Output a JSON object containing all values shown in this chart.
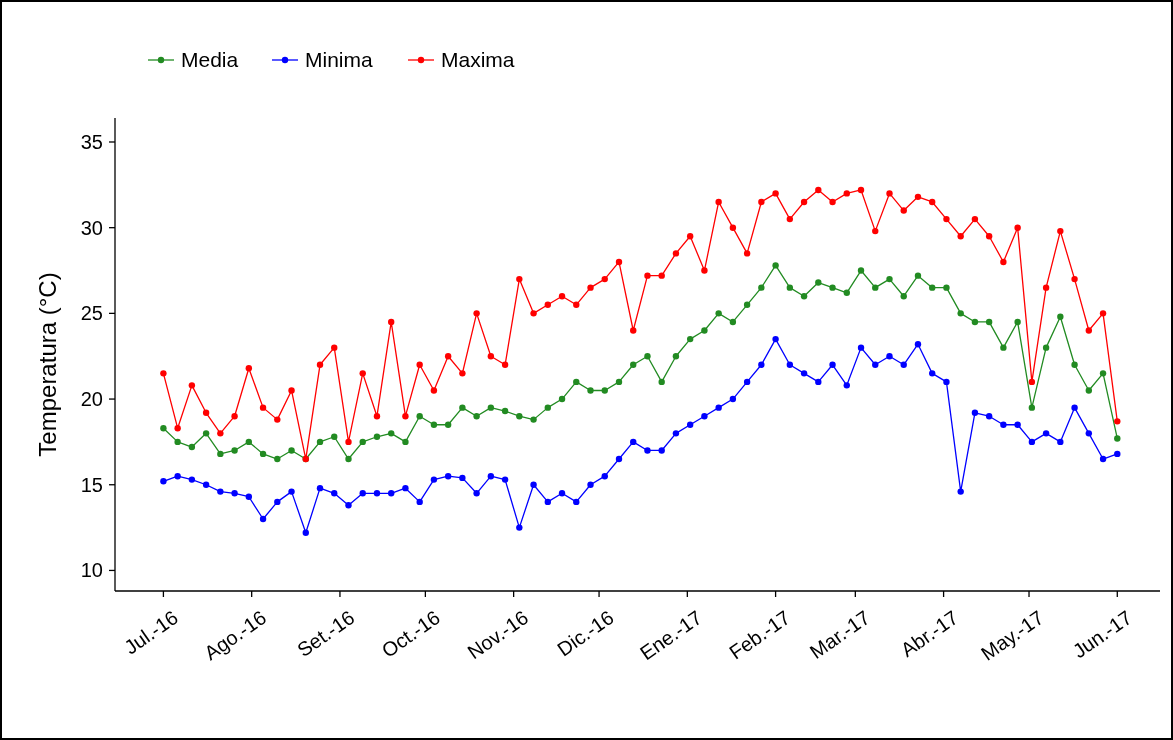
{
  "chart_data": {
    "type": "line",
    "ylabel": "Temperatura (°C)",
    "legend": "top left",
    "marker": "circle",
    "line_style": "solid",
    "x": [
      "2016-07-01",
      "2016-07-06",
      "2016-07-11",
      "2016-07-16",
      "2016-07-21",
      "2016-07-26",
      "2016-07-31",
      "2016-08-05",
      "2016-08-10",
      "2016-08-15",
      "2016-08-20",
      "2016-08-25",
      "2016-08-30",
      "2016-09-04",
      "2016-09-09",
      "2016-09-14",
      "2016-09-19",
      "2016-09-24",
      "2016-09-29",
      "2016-10-04",
      "2016-10-09",
      "2016-10-14",
      "2016-10-19",
      "2016-10-24",
      "2016-10-29",
      "2016-11-03",
      "2016-11-08",
      "2016-11-13",
      "2016-11-18",
      "2016-11-23",
      "2016-11-28",
      "2016-12-03",
      "2016-12-08",
      "2016-12-13",
      "2016-12-18",
      "2016-12-23",
      "2016-12-28",
      "2017-01-02",
      "2017-01-07",
      "2017-01-12",
      "2017-01-17",
      "2017-01-22",
      "2017-01-27",
      "2017-02-01",
      "2017-02-06",
      "2017-02-11",
      "2017-02-16",
      "2017-02-21",
      "2017-02-26",
      "2017-03-03",
      "2017-03-08",
      "2017-03-13",
      "2017-03-18",
      "2017-03-23",
      "2017-03-28",
      "2017-04-02",
      "2017-04-07",
      "2017-04-12",
      "2017-04-17",
      "2017-04-22",
      "2017-04-27",
      "2017-05-02",
      "2017-05-07",
      "2017-05-12",
      "2017-05-17",
      "2017-05-22",
      "2017-05-27",
      "2017-06-01"
    ],
    "series": [
      {
        "name": "Media",
        "color": "#228b22",
        "values": [
          18.3,
          17.5,
          17.2,
          18.0,
          16.8,
          17.0,
          17.5,
          16.8,
          16.5,
          17.0,
          16.5,
          17.5,
          17.8,
          16.5,
          17.5,
          17.8,
          18.0,
          17.5,
          19.0,
          18.5,
          18.5,
          19.5,
          19.0,
          19.5,
          19.3,
          19.0,
          18.8,
          19.5,
          20.0,
          21.0,
          20.5,
          20.5,
          21.0,
          22.0,
          22.5,
          21.0,
          22.5,
          23.5,
          24.0,
          25.0,
          24.5,
          25.5,
          26.5,
          27.8,
          26.5,
          26.0,
          26.8,
          26.5,
          26.2,
          27.5,
          26.5,
          27.0,
          26.0,
          27.2,
          26.5,
          26.5,
          25.0,
          24.5,
          24.5,
          23.0,
          24.5,
          19.5,
          23.0,
          24.8,
          22.0,
          20.5,
          21.5,
          17.7
        ]
      },
      {
        "name": "Minima",
        "color": "#0000ff",
        "values": [
          15.2,
          15.5,
          15.3,
          15.0,
          14.6,
          14.5,
          14.3,
          13.0,
          14.0,
          14.6,
          12.2,
          14.8,
          14.5,
          13.8,
          14.5,
          14.5,
          14.5,
          14.8,
          14.0,
          15.3,
          15.5,
          15.4,
          14.5,
          15.5,
          15.3,
          12.5,
          15.0,
          14.0,
          14.5,
          14.0,
          15.0,
          15.5,
          16.5,
          17.5,
          17.0,
          17.0,
          18.0,
          18.5,
          19.0,
          19.5,
          20.0,
          21.0,
          22.0,
          23.5,
          22.0,
          21.5,
          21.0,
          22.0,
          20.8,
          23.0,
          22.0,
          22.5,
          22.0,
          23.2,
          21.5,
          21.0,
          14.6,
          19.2,
          19.0,
          18.5,
          18.5,
          17.5,
          18.0,
          17.5,
          19.5,
          18.0,
          16.5,
          16.8
        ]
      },
      {
        "name": "Maxima",
        "color": "#ff0000",
        "values": [
          21.5,
          18.3,
          20.8,
          19.2,
          18.0,
          19.0,
          21.8,
          19.5,
          18.8,
          20.5,
          16.5,
          22.0,
          23.0,
          17.5,
          21.5,
          19.0,
          24.5,
          19.0,
          22.0,
          20.5,
          22.5,
          21.5,
          25.0,
          22.5,
          22.0,
          27.0,
          25.0,
          25.5,
          26.0,
          25.5,
          26.5,
          27.0,
          28.0,
          24.0,
          27.2,
          27.2,
          28.5,
          29.5,
          27.5,
          31.5,
          30.0,
          28.5,
          31.5,
          32.0,
          30.5,
          31.5,
          32.2,
          31.5,
          32.0,
          32.2,
          29.8,
          32.0,
          31.0,
          31.8,
          31.5,
          30.5,
          29.5,
          30.5,
          29.5,
          28.0,
          30.0,
          21.0,
          26.5,
          29.8,
          27.0,
          24.0,
          25.0,
          18.7
        ]
      }
    ],
    "xlim": [
      "2016-06-14",
      "2017-06-16"
    ],
    "xticks": [
      {
        "value": "2016-07-01",
        "label": "Jul.-16"
      },
      {
        "value": "2016-08-01",
        "label": "Ago.-16"
      },
      {
        "value": "2016-09-01",
        "label": "Set.-16"
      },
      {
        "value": "2016-10-01",
        "label": "Oct.-16"
      },
      {
        "value": "2016-11-01",
        "label": "Nov.-16"
      },
      {
        "value": "2016-12-01",
        "label": "Dic.-16"
      },
      {
        "value": "2017-01-01",
        "label": "Ene.-17"
      },
      {
        "value": "2017-02-01",
        "label": "Feb.-17"
      },
      {
        "value": "2017-03-01",
        "label": "Mar.-17"
      },
      {
        "value": "2017-04-01",
        "label": "Abr.-17"
      },
      {
        "value": "2017-05-01",
        "label": "May.-17"
      },
      {
        "value": "2017-06-01",
        "label": "Jun.-17"
      }
    ],
    "ylim": [
      8.8,
      36.4
    ],
    "yticks": [
      10,
      15,
      20,
      25,
      30,
      35
    ],
    "grid": false
  }
}
